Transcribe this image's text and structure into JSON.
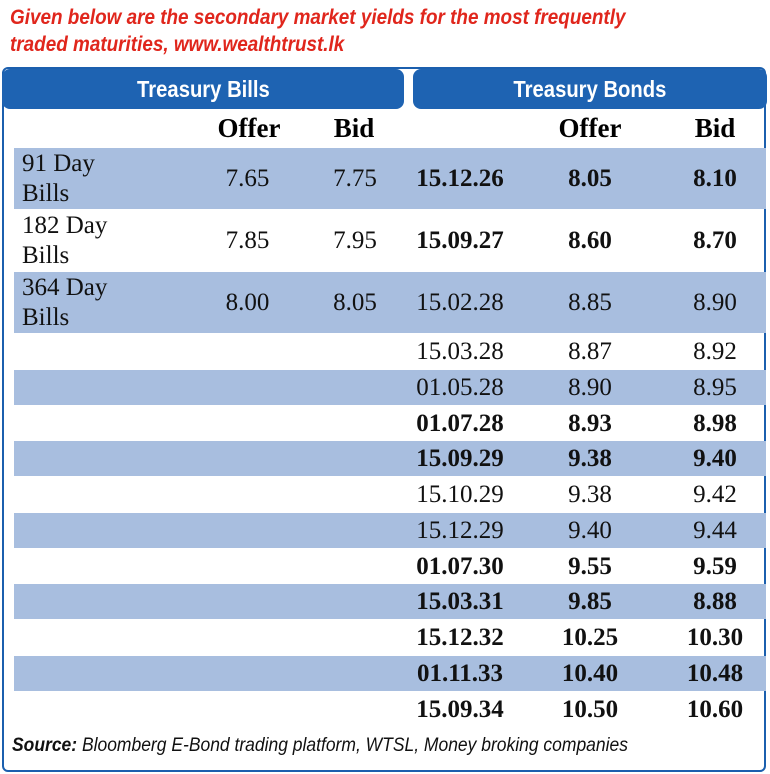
{
  "intro": {
    "line1": "Given below are the secondary market yields for the most frequently",
    "line2": "traded maturities, www.wealthtrust.lk"
  },
  "tabs": {
    "bills": "Treasury Bills",
    "bonds": "Treasury Bonds"
  },
  "headers": {
    "bill_offer": "Offer",
    "bill_bid": "Bid",
    "bond_offer": "Offer",
    "bond_bid": "Bid"
  },
  "bills": [
    {
      "line1": "91 Day",
      "line2": "Bills",
      "offer": "7.65",
      "bid": "7.75"
    },
    {
      "line1": "182 Day",
      "line2": "Bills",
      "offer": "7.85",
      "bid": "7.95"
    },
    {
      "line1": "364 Day",
      "line2": "Bills",
      "offer": "8.00",
      "bid": "8.05"
    }
  ],
  "bonds": [
    {
      "maturity": "15.12.26",
      "offer": "8.05",
      "bid": "8.10",
      "bold": true
    },
    {
      "maturity": "15.09.27",
      "offer": "8.60",
      "bid": "8.70",
      "bold": true
    },
    {
      "maturity": "15.02.28",
      "offer": "8.85",
      "bid": "8.90",
      "bold": false
    },
    {
      "maturity": "15.03.28",
      "offer": "8.87",
      "bid": "8.92",
      "bold": false
    },
    {
      "maturity": "01.05.28",
      "offer": "8.90",
      "bid": "8.95",
      "bold": false
    },
    {
      "maturity": "01.07.28",
      "offer": "8.93",
      "bid": "8.98",
      "bold": true
    },
    {
      "maturity": "15.09.29",
      "offer": "9.38",
      "bid": "9.40",
      "bold": true
    },
    {
      "maturity": "15.10.29",
      "offer": "9.38",
      "bid": "9.42",
      "bold": false
    },
    {
      "maturity": "15.12.29",
      "offer": "9.40",
      "bid": "9.44",
      "bold": false
    },
    {
      "maturity": "01.07.30",
      "offer": "9.55",
      "bid": "9.59",
      "bold": true
    },
    {
      "maturity": "15.03.31",
      "offer": "9.85",
      "bid": "8.88",
      "bold": true
    },
    {
      "maturity": "15.12.32",
      "offer": "10.25",
      "bid": "10.30",
      "bold": true
    },
    {
      "maturity": "01.11.33",
      "offer": "10.40",
      "bid": "10.48",
      "bold": true
    },
    {
      "maturity": "15.09.34",
      "offer": "10.50",
      "bid": "10.60",
      "bold": true
    }
  ],
  "source": {
    "label": "Source:",
    "text": " Bloomberg E-Bond trading platform, WTSL, Money broking companies"
  }
}
